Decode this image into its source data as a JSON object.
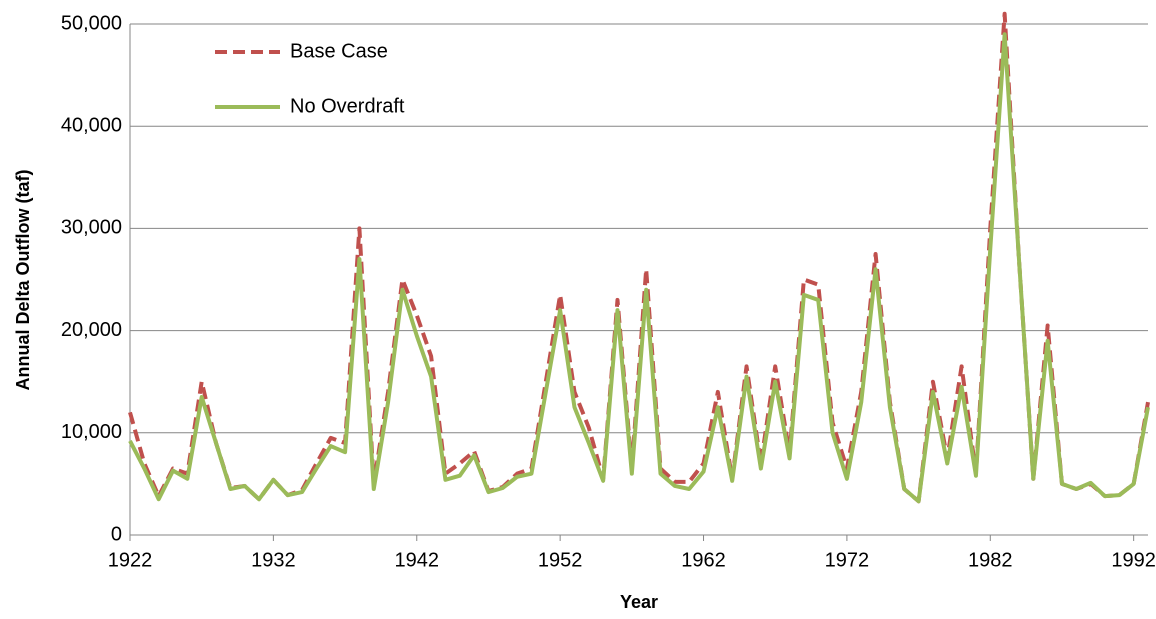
{
  "chart_data": {
    "type": "line",
    "x_label": "Year",
    "y_label": "Annual Delta Outflow (taf)",
    "x": [
      1922,
      1923,
      1924,
      1925,
      1926,
      1927,
      1928,
      1929,
      1930,
      1931,
      1932,
      1933,
      1934,
      1935,
      1936,
      1937,
      1938,
      1939,
      1940,
      1941,
      1942,
      1943,
      1944,
      1945,
      1946,
      1947,
      1948,
      1949,
      1950,
      1951,
      1952,
      1953,
      1954,
      1955,
      1956,
      1957,
      1958,
      1959,
      1960,
      1961,
      1962,
      1963,
      1964,
      1965,
      1966,
      1967,
      1968,
      1969,
      1970,
      1971,
      1972,
      1973,
      1974,
      1975,
      1976,
      1977,
      1978,
      1979,
      1980,
      1981,
      1982,
      1983,
      1984,
      1985,
      1986,
      1987,
      1988,
      1989,
      1990,
      1991,
      1992,
      1993
    ],
    "series": [
      {
        "name": "Base Case",
        "color": "#c0504d",
        "dash": true,
        "values": [
          12000,
          7000,
          3800,
          6500,
          6000,
          15000,
          9000,
          4600,
          4800,
          3500,
          5400,
          3900,
          4400,
          7000,
          9500,
          9000,
          30000,
          5000,
          14000,
          25000,
          21500,
          17500,
          6000,
          7000,
          8200,
          4300,
          4700,
          6000,
          6500,
          15000,
          23500,
          14000,
          10500,
          5500,
          23000,
          6500,
          26000,
          6500,
          5200,
          5200,
          7000,
          14000,
          5500,
          16500,
          7000,
          16500,
          8000,
          25000,
          24500,
          11000,
          6500,
          14000,
          27500,
          13000,
          4500,
          3300,
          15000,
          7500,
          16500,
          6000,
          30000,
          51000,
          27000,
          5500,
          20500,
          5000,
          4500,
          5000,
          3800,
          3900,
          5000,
          13000
        ]
      },
      {
        "name": "No Overdraft",
        "color": "#9bbb59",
        "dash": false,
        "values": [
          9200,
          6500,
          3500,
          6300,
          5500,
          13500,
          9000,
          4500,
          4800,
          3500,
          5400,
          3900,
          4200,
          6500,
          8700,
          8100,
          27000,
          4500,
          13000,
          24000,
          19500,
          15500,
          5400,
          5800,
          7800,
          4200,
          4600,
          5700,
          6000,
          14000,
          22000,
          12500,
          9000,
          5300,
          22000,
          6000,
          24000,
          6000,
          4800,
          4500,
          6200,
          12500,
          5300,
          15500,
          6500,
          15000,
          7500,
          23500,
          23000,
          10000,
          5500,
          13000,
          26000,
          12500,
          4500,
          3300,
          14000,
          7000,
          14500,
          5800,
          28000,
          49000,
          27000,
          5500,
          19000,
          5000,
          4500,
          5100,
          3800,
          3900,
          5000,
          12500
        ]
      }
    ],
    "xlim": [
      1922,
      1993
    ],
    "xticks": [
      1922,
      1932,
      1942,
      1952,
      1962,
      1972,
      1982,
      1992
    ],
    "ylim": [
      0,
      50000
    ],
    "yticks": [
      0,
      {
        "value": 10000,
        "label": "10,000"
      },
      {
        "value": 20000,
        "label": "20,000"
      },
      {
        "value": 30000,
        "label": "30,000"
      },
      {
        "value": 40000,
        "label": "40,000"
      },
      {
        "value": 50000,
        "label": "50,000"
      }
    ],
    "grid": true,
    "legend": "top-left"
  }
}
